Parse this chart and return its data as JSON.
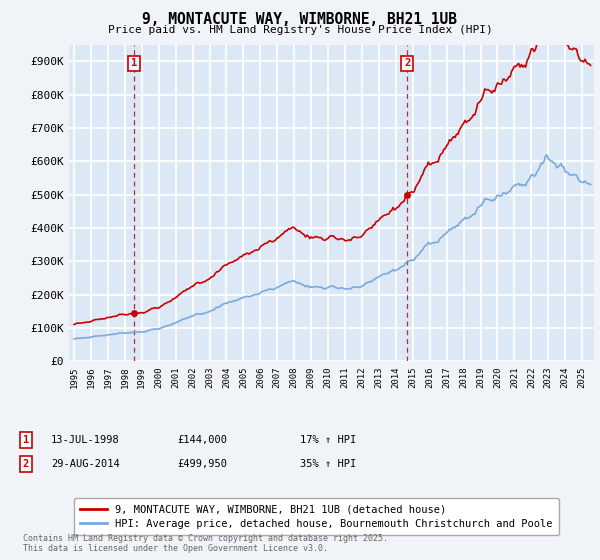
{
  "title": "9, MONTACUTE WAY, WIMBORNE, BH21 1UB",
  "subtitle": "Price paid vs. HM Land Registry's House Price Index (HPI)",
  "ylabel_ticks": [
    "£0",
    "£100K",
    "£200K",
    "£300K",
    "£400K",
    "£500K",
    "£600K",
    "£700K",
    "£800K",
    "£900K"
  ],
  "ytick_values": [
    0,
    100000,
    200000,
    300000,
    400000,
    500000,
    600000,
    700000,
    800000,
    900000
  ],
  "ylim": [
    0,
    950000
  ],
  "xlim_start": 1994.7,
  "xlim_end": 2025.7,
  "sale1_date": 1998.54,
  "sale1_price": 144000,
  "sale1_label": "1",
  "sale2_date": 2014.66,
  "sale2_price": 499950,
  "sale2_label": "2",
  "legend_line1": "9, MONTACUTE WAY, WIMBORNE, BH21 1UB (detached house)",
  "legend_line2": "HPI: Average price, detached house, Bournemouth Christchurch and Poole",
  "footer": "Contains HM Land Registry data © Crown copyright and database right 2025.\nThis data is licensed under the Open Government Licence v3.0.",
  "sale_marker_color": "#cc0000",
  "hpi_line_color": "#7aaadd",
  "property_line_color": "#cc0000",
  "vline_color": "#cc0000",
  "plot_bg_color": "#dce8f5",
  "outer_bg_color": "#f0f4f8",
  "grid_color": "#ffffff",
  "box_color": "#cc0000"
}
